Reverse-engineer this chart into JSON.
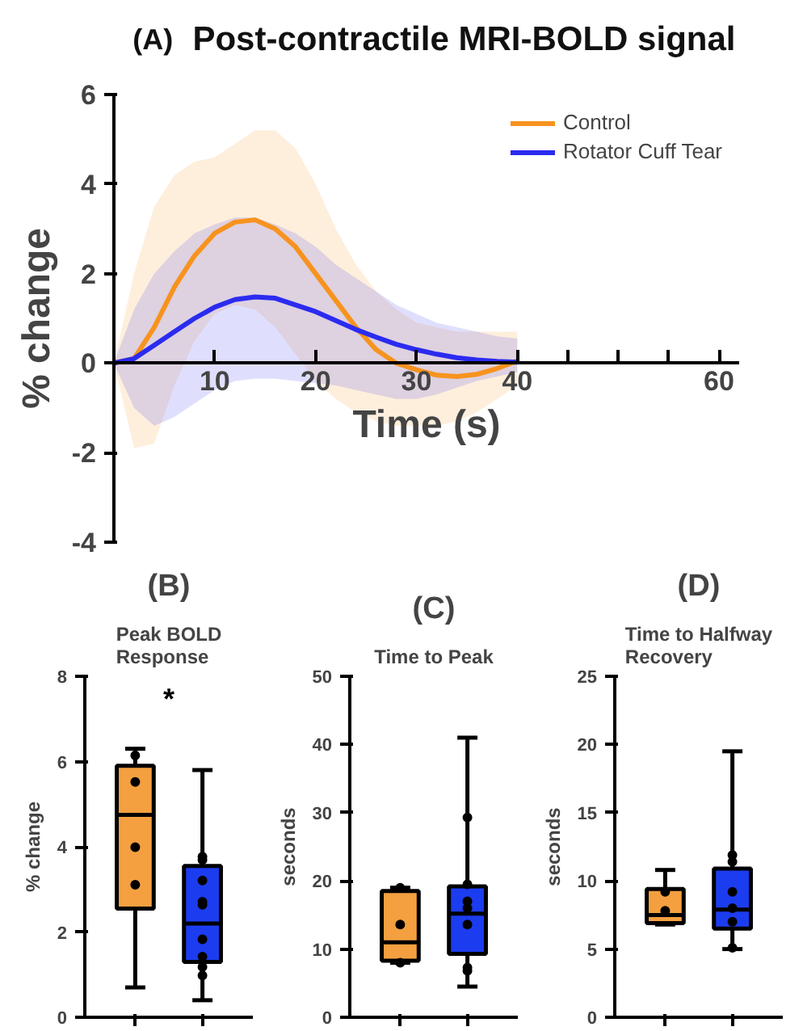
{
  "chart_data": [
    {
      "type": "line",
      "title": "Post-contractile MRI-BOLD signal",
      "annotations": [
        "(A)"
      ],
      "xlabel": "Time (s)",
      "ylabel": "% change",
      "x": [
        0,
        2,
        4,
        6,
        8,
        10,
        12,
        14,
        16,
        18,
        20,
        22,
        24,
        26,
        28,
        30,
        32,
        34,
        36,
        38,
        40
      ],
      "xlim": [
        0,
        62
      ],
      "xticks": [
        10,
        20,
        30,
        40,
        {
          "value": 45,
          "label": null
        },
        {
          "value": 50,
          "label": null
        },
        {
          "value": 55,
          "label": null
        },
        60
      ],
      "ylim": [
        -4,
        6
      ],
      "yticks": [
        -4,
        -2,
        0,
        2,
        4,
        6
      ],
      "legend": "top right",
      "grid": false,
      "series": [
        {
          "name": "Control",
          "color": "#f7931e",
          "values": [
            0,
            0.1,
            0.8,
            1.7,
            2.4,
            2.9,
            3.15,
            3.2,
            3.0,
            2.6,
            2.0,
            1.4,
            0.8,
            0.3,
            0.0,
            -0.15,
            -0.27,
            -0.3,
            -0.25,
            -0.12,
            0.05
          ],
          "upper": [
            0,
            2.0,
            3.5,
            4.2,
            4.5,
            4.6,
            4.9,
            5.2,
            5.2,
            4.8,
            4.0,
            3.0,
            2.2,
            1.6,
            1.2,
            0.9,
            0.8,
            0.7,
            0.7,
            0.7,
            0.7
          ],
          "lower": [
            0,
            -1.9,
            -1.8,
            -0.5,
            0.5,
            1.1,
            1.3,
            1.2,
            0.8,
            0.2,
            -0.4,
            -0.8,
            -1.1,
            -1.3,
            -1.4,
            -1.4,
            -1.4,
            -1.3,
            -1.1,
            -0.8,
            -0.5
          ]
        },
        {
          "name": "Rotator Cuff Tear",
          "color": "#2b2bf0",
          "values": [
            0,
            0.1,
            0.4,
            0.7,
            1.0,
            1.25,
            1.42,
            1.48,
            1.45,
            1.3,
            1.15,
            0.95,
            0.75,
            0.58,
            0.42,
            0.3,
            0.2,
            0.12,
            0.07,
            0.04,
            0.02
          ],
          "upper": [
            0,
            1.2,
            2.0,
            2.5,
            2.9,
            3.1,
            3.25,
            3.25,
            3.1,
            2.9,
            2.6,
            2.2,
            1.9,
            1.6,
            1.3,
            1.1,
            0.9,
            0.8,
            0.7,
            0.6,
            0.55
          ],
          "lower": [
            0,
            -1.0,
            -1.4,
            -1.2,
            -0.9,
            -0.6,
            -0.4,
            -0.35,
            -0.35,
            -0.4,
            -0.45,
            -0.5,
            -0.6,
            -0.7,
            -0.8,
            -0.8,
            -0.7,
            -0.55,
            -0.4,
            -0.3,
            -0.2
          ]
        }
      ]
    },
    {
      "type": "box",
      "title": "(B)",
      "subtitle": "Peak BOLD\nResponse",
      "ylabel": "% change",
      "annotations": [
        "*"
      ],
      "categories": [
        null,
        null
      ],
      "colors": [
        "#f4a040",
        "#1c3cf0"
      ],
      "ylim": [
        0,
        8
      ],
      "yticks": [
        0,
        2,
        4,
        6,
        8
      ],
      "grid": false,
      "boxes": [
        {
          "low": 0.7,
          "q1": 2.55,
          "median": 4.75,
          "q3": 5.9,
          "high": 6.3
        },
        {
          "low": 0.4,
          "q1": 1.3,
          "median": 2.2,
          "q3": 3.55,
          "high": 5.8
        }
      ],
      "series": [
        {
          "type": "scatter",
          "color": "#000000",
          "values": [
            6.14,
            3.77
          ]
        },
        {
          "type": "scatter",
          "color": "#000000",
          "values": [
            5.52,
            3.69
          ]
        },
        {
          "type": "scatter",
          "color": "#000000",
          "values": [
            3.99,
            3.21
          ]
        },
        {
          "type": "scatter",
          "color": "#000000",
          "values": [
            3.11,
            2.71
          ]
        },
        {
          "type": "scatter",
          "color": "#000000",
          "values": [
            null,
            2.64
          ]
        },
        {
          "type": "scatter",
          "color": "#000000",
          "values": [
            null,
            1.83
          ]
        },
        {
          "type": "scatter",
          "color": "#000000",
          "values": [
            null,
            1.42
          ]
        },
        {
          "type": "scatter",
          "color": "#000000",
          "values": [
            null,
            1.18
          ]
        },
        {
          "type": "scatter",
          "color": "#000000",
          "values": [
            null,
            0.98
          ]
        }
      ]
    },
    {
      "type": "box",
      "title": "(C)",
      "subtitle": "Time to Peak",
      "ylabel": "seconds",
      "categories": [
        null,
        null
      ],
      "colors": [
        "#f4a040",
        "#1c3cf0"
      ],
      "ylim": [
        0,
        50
      ],
      "yticks": [
        0,
        10,
        20,
        30,
        40,
        50
      ],
      "grid": false,
      "boxes": [
        {
          "low": 8.0,
          "q1": 8.3,
          "median": 11.0,
          "q3": 18.5,
          "high": 19.0
        },
        {
          "low": 4.5,
          "q1": 9.3,
          "median": 15.2,
          "q3": 19.2,
          "high": 41.0
        }
      ],
      "series": [
        {
          "type": "scatter",
          "color": "#000000",
          "values": [
            19.0,
            29.3
          ]
        },
        {
          "type": "scatter",
          "color": "#000000",
          "values": [
            13.6,
            19.5
          ]
        },
        {
          "type": "scatter",
          "color": "#000000",
          "values": [
            8.0,
            17.0
          ]
        },
        {
          "type": "scatter",
          "color": "#000000",
          "values": [
            null,
            16.0
          ]
        },
        {
          "type": "scatter",
          "color": "#000000",
          "values": [
            null,
            13.6
          ]
        },
        {
          "type": "scatter",
          "color": "#000000",
          "values": [
            null,
            7.3
          ]
        },
        {
          "type": "scatter",
          "color": "#000000",
          "values": [
            null,
            6.8
          ]
        }
      ]
    },
    {
      "type": "box",
      "title": "(D)",
      "subtitle": "Time to Halfway\nRecovery",
      "ylabel": "seconds",
      "categories": [
        null,
        null
      ],
      "colors": [
        "#f4a040",
        "#1c3cf0"
      ],
      "ylim": [
        0,
        25
      ],
      "yticks": [
        0,
        5,
        10,
        15,
        20,
        25
      ],
      "grid": false,
      "boxes": [
        {
          "low": 6.8,
          "q1": 6.9,
          "median": 7.5,
          "q3": 9.4,
          "high": 10.8
        },
        {
          "low": 5.0,
          "q1": 6.5,
          "median": 7.9,
          "q3": 10.9,
          "high": 19.5
        }
      ],
      "series": [
        {
          "type": "scatter",
          "color": "#000000",
          "values": [
            9.2,
            11.9
          ]
        },
        {
          "type": "scatter",
          "color": "#000000",
          "values": [
            7.8,
            11.4
          ]
        },
        {
          "type": "scatter",
          "color": "#000000",
          "values": [
            null,
            9.2
          ]
        },
        {
          "type": "scatter",
          "color": "#000000",
          "values": [
            null,
            8.0
          ]
        },
        {
          "type": "scatter",
          "color": "#000000",
          "values": [
            null,
            7.0
          ]
        },
        {
          "type": "scatter",
          "color": "#000000",
          "values": [
            null,
            5.1
          ]
        }
      ]
    }
  ]
}
